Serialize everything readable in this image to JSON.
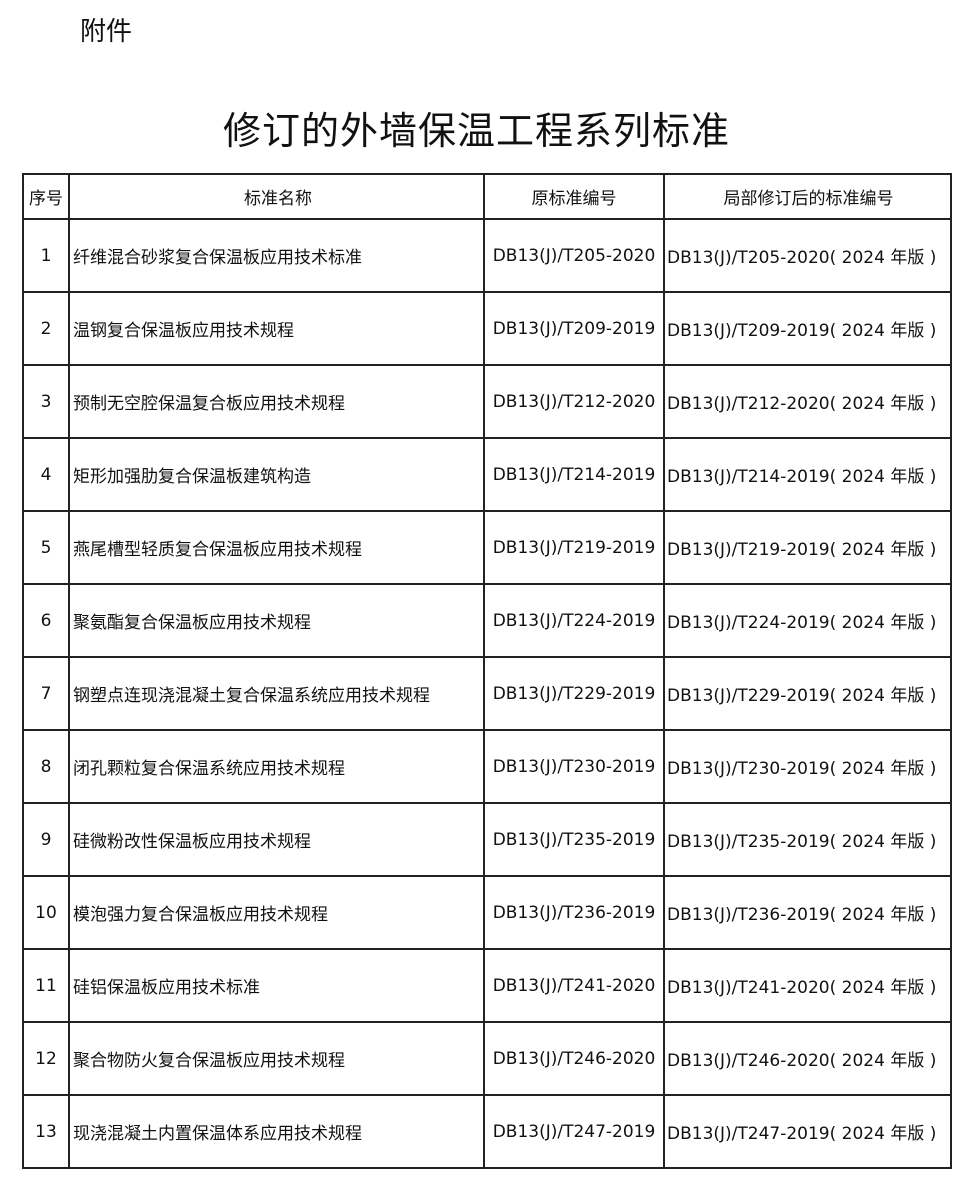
{
  "header": {
    "attachment_label": "附件",
    "title": "修订的外墙保温工程系列标准"
  },
  "table": {
    "columns": [
      "序号",
      "标准名称",
      "原标准编号",
      "局部修订后的标准编号"
    ],
    "rows": [
      {
        "seq": "1",
        "name": "纤维混合砂浆复合保温板应用技术标准",
        "original": "DB13(J)/T205-2020",
        "revised": "DB13(J)/T205-2020( 2024 年版 )"
      },
      {
        "seq": "2",
        "name": "温钢复合保温板应用技术规程",
        "original": "DB13(J)/T209-2019",
        "revised": "DB13(J)/T209-2019( 2024 年版 )"
      },
      {
        "seq": "3",
        "name": "预制无空腔保温复合板应用技术规程",
        "original": "DB13(J)/T212-2020",
        "revised": "DB13(J)/T212-2020( 2024 年版 )"
      },
      {
        "seq": "4",
        "name": "矩形加强肋复合保温板建筑构造",
        "original": "DB13(J)/T214-2019",
        "revised": "DB13(J)/T214-2019( 2024 年版 )"
      },
      {
        "seq": "5",
        "name": "燕尾槽型轻质复合保温板应用技术规程",
        "original": "DB13(J)/T219-2019",
        "revised": "DB13(J)/T219-2019( 2024 年版 )"
      },
      {
        "seq": "6",
        "name": "聚氨酯复合保温板应用技术规程",
        "original": "DB13(J)/T224-2019",
        "revised": "DB13(J)/T224-2019( 2024 年版 )"
      },
      {
        "seq": "7",
        "name": "钢塑点连现浇混凝土复合保温系统应用技术规程",
        "original": "DB13(J)/T229-2019",
        "revised": "DB13(J)/T229-2019( 2024 年版 )"
      },
      {
        "seq": "8",
        "name": "闭孔颗粒复合保温系统应用技术规程",
        "original": "DB13(J)/T230-2019",
        "revised": "DB13(J)/T230-2019( 2024 年版 )"
      },
      {
        "seq": "9",
        "name": "硅微粉改性保温板应用技术规程",
        "original": "DB13(J)/T235-2019",
        "revised": "DB13(J)/T235-2019( 2024 年版 )"
      },
      {
        "seq": "10",
        "name": "模泡强力复合保温板应用技术规程",
        "original": "DB13(J)/T236-2019",
        "revised": "DB13(J)/T236-2019( 2024 年版 )"
      },
      {
        "seq": "11",
        "name": "硅铝保温板应用技术标准",
        "original": "DB13(J)/T241-2020",
        "revised": "DB13(J)/T241-2020( 2024 年版 )"
      },
      {
        "seq": "12",
        "name": "聚合物防火复合保温板应用技术规程",
        "original": "DB13(J)/T246-2020",
        "revised": "DB13(J)/T246-2020( 2024 年版 )"
      },
      {
        "seq": "13",
        "name": "现浇混凝土内置保温体系应用技术规程",
        "original": "DB13(J)/T247-2019",
        "revised": "DB13(J)/T247-2019( 2024 年版 )"
      }
    ]
  }
}
